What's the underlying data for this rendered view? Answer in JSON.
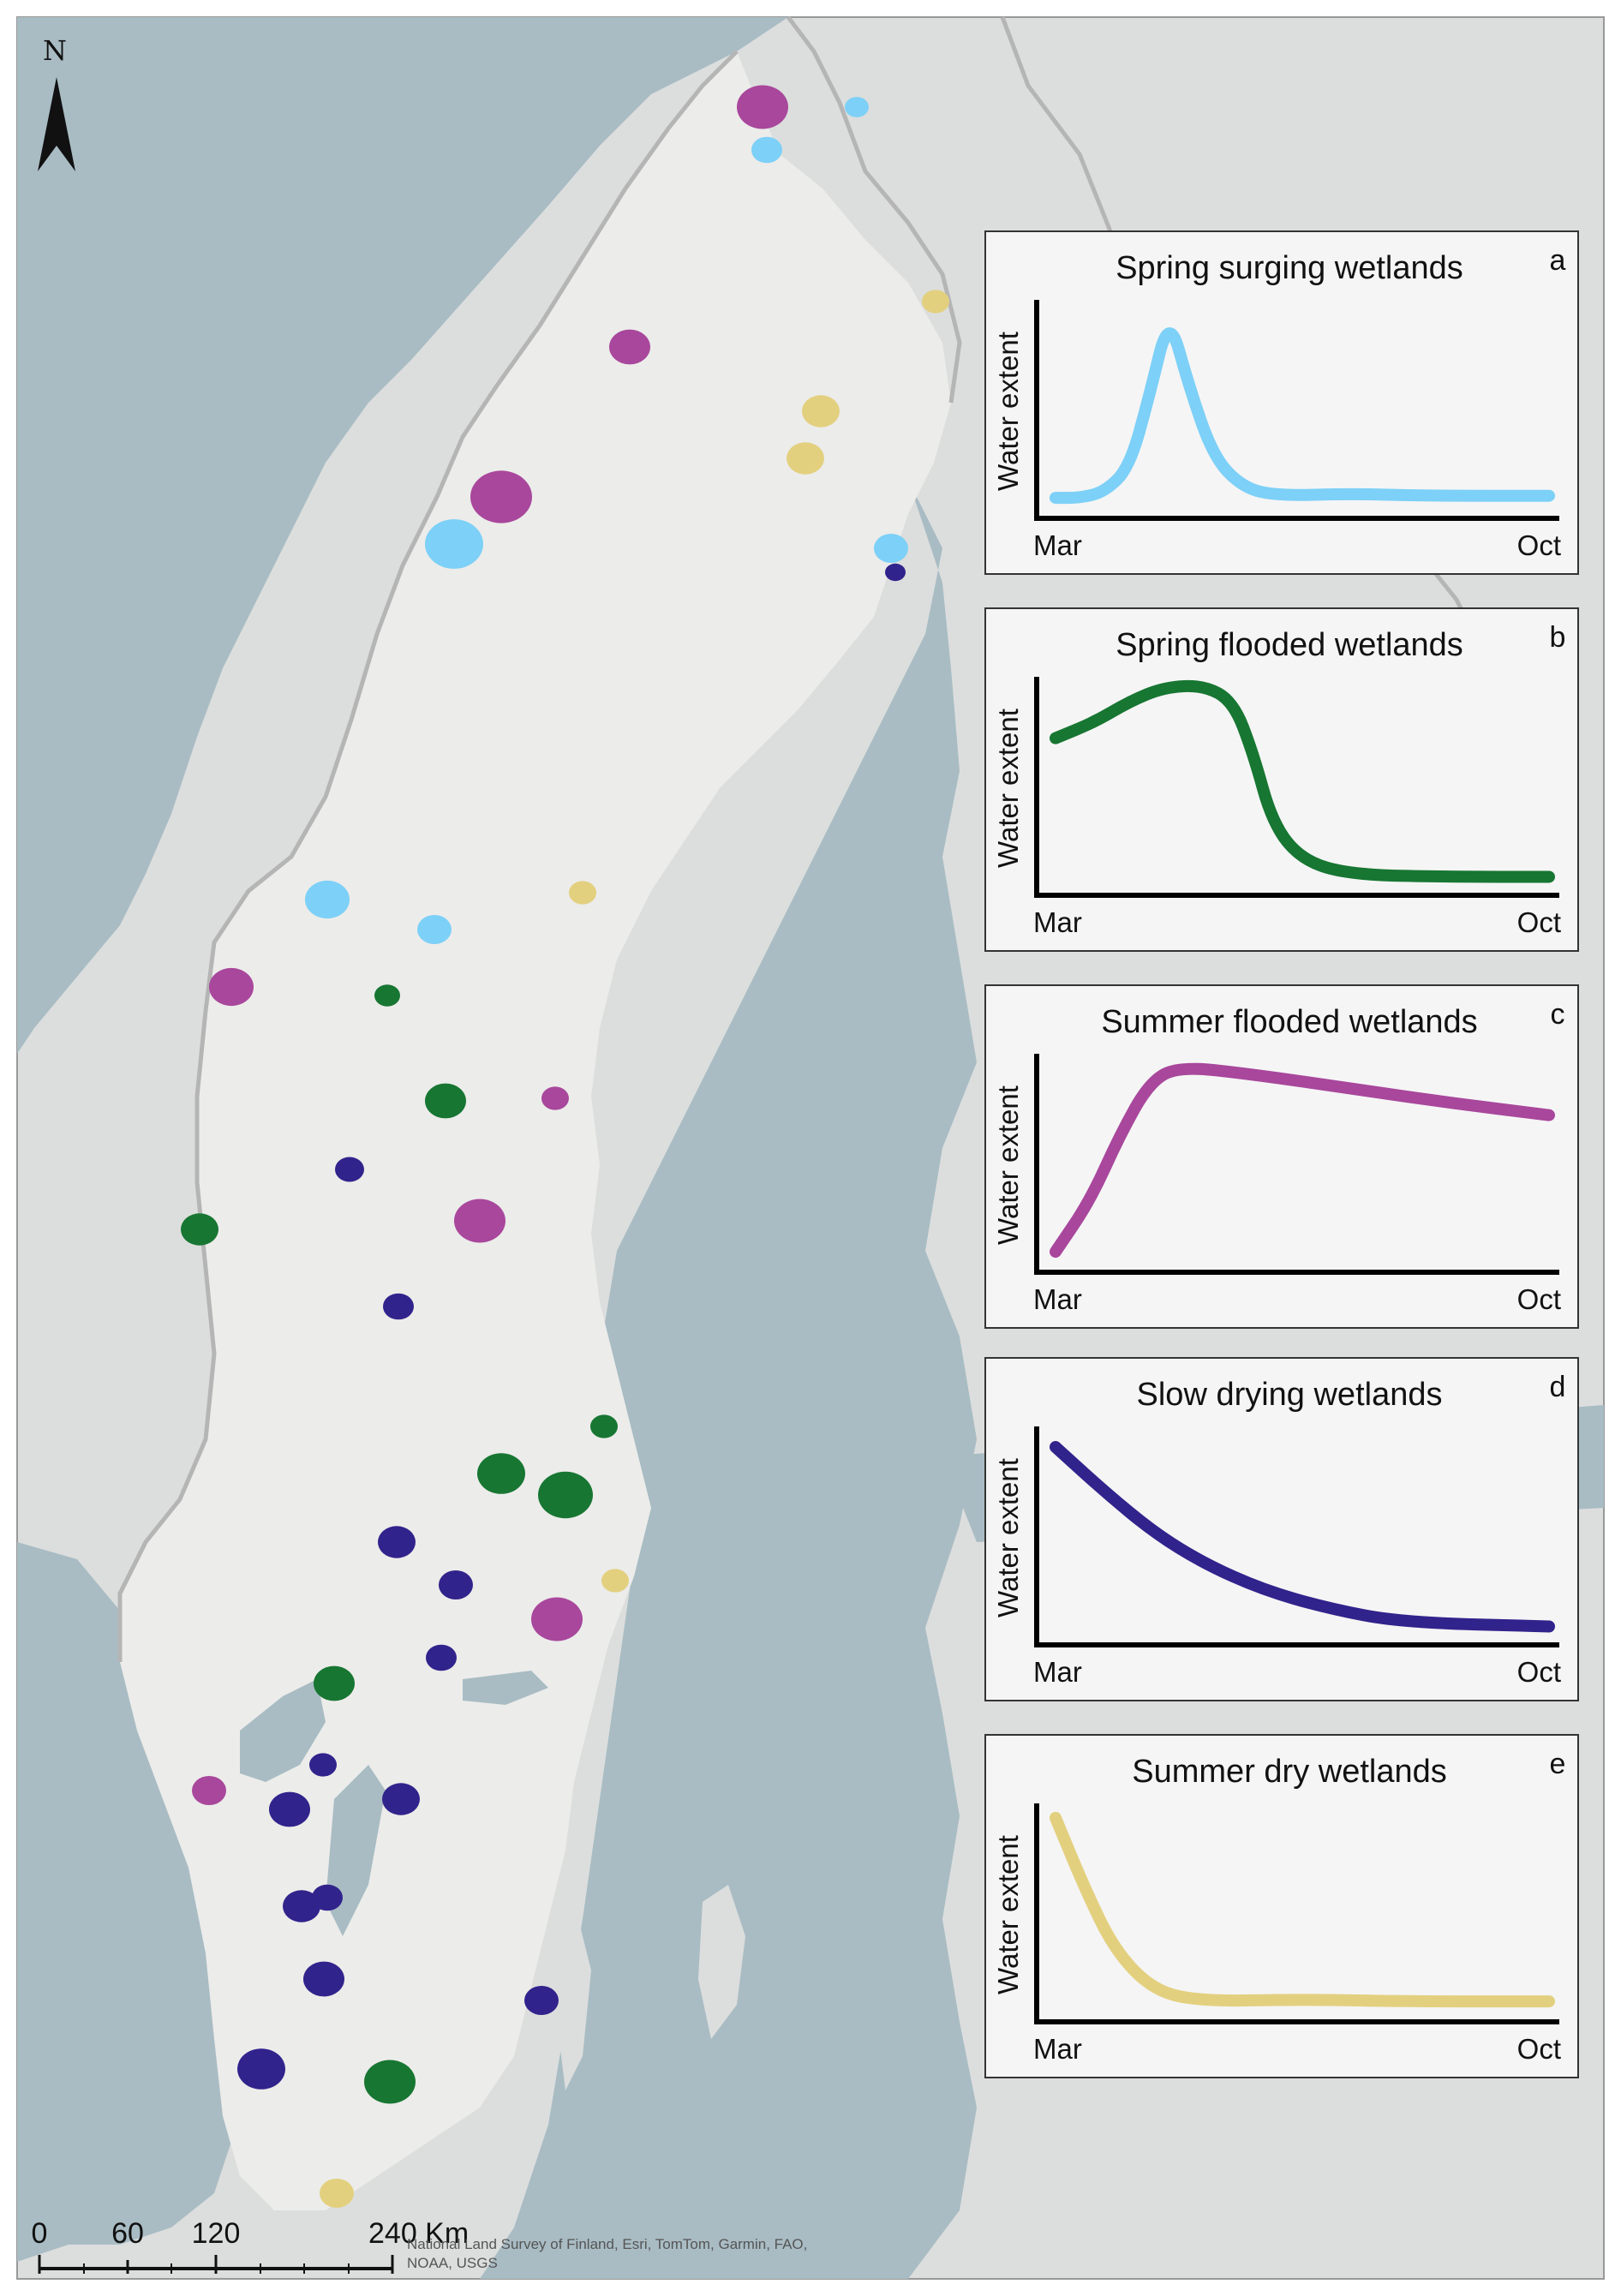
{
  "north_arrow": {
    "label": "N",
    "icon": "north-arrow-icon"
  },
  "colors": {
    "sea": "#a9bcc4",
    "land_sweden": "#ececea",
    "land_other": "#dcdedd",
    "border": "#b5b5b5",
    "spring_surging": "#7dd0f7",
    "spring_flooded": "#177632",
    "summer_flooded": "#a8479c",
    "slow_drying": "#31238c",
    "summer_dry": "#e3d07f"
  },
  "panels": [
    {
      "letter": "a",
      "title": "Spring surging wetlands",
      "color_key": "spring_surging",
      "ylabel": "Water extent",
      "x_start": "Mar",
      "x_end": "Oct"
    },
    {
      "letter": "b",
      "title": "Spring flooded wetlands",
      "color_key": "spring_flooded",
      "ylabel": "Water extent",
      "x_start": "Mar",
      "x_end": "Oct"
    },
    {
      "letter": "c",
      "title": "Summer flooded wetlands",
      "color_key": "summer_flooded",
      "ylabel": "Water extent",
      "x_start": "Mar",
      "x_end": "Oct"
    },
    {
      "letter": "d",
      "title": "Slow drying wetlands",
      "color_key": "slow_drying",
      "ylabel": "Water extent",
      "x_start": "Mar",
      "x_end": "Oct"
    },
    {
      "letter": "e",
      "title": "Summer dry wetlands",
      "color_key": "summer_dry",
      "ylabel": "Water extent",
      "x_start": "Mar",
      "x_end": "Oct"
    }
  ],
  "scale_bar": {
    "ticks": [
      "0",
      "60",
      "120",
      "240 Km"
    ]
  },
  "attribution": [
    "National Land Survey of Finland, Esri, TomTom, Garmin, FAO,",
    "NOAA, USGS"
  ]
}
